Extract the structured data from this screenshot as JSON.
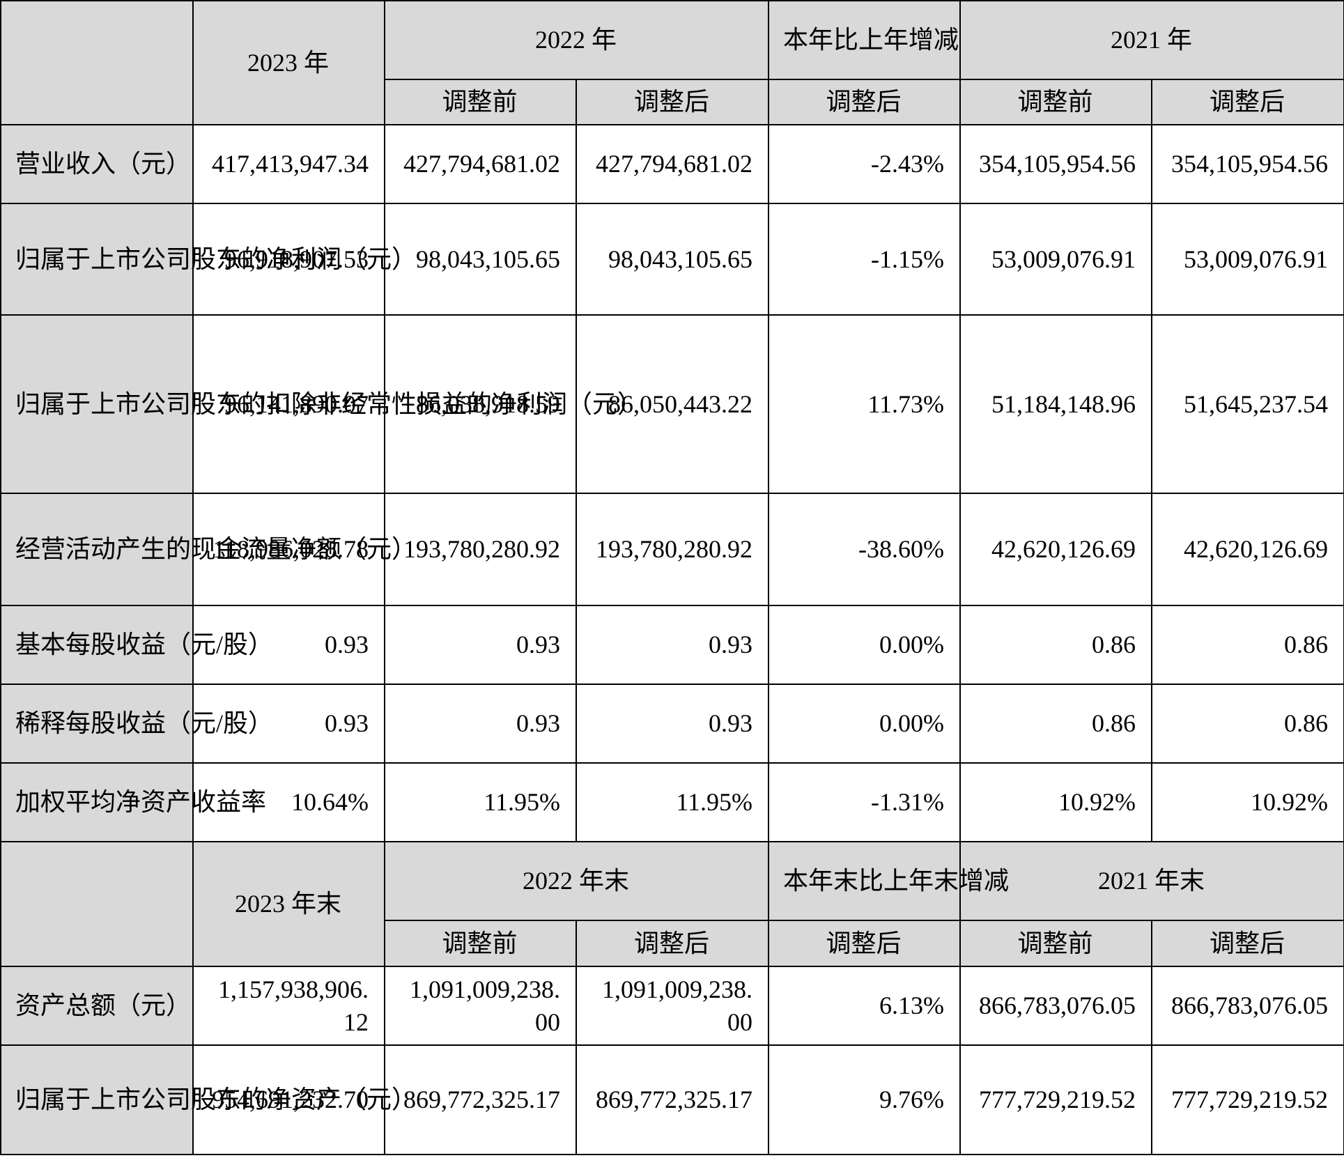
{
  "section1": {
    "col_2023": "2023 年",
    "col_2022": "2022 年",
    "col_change": "本年比上年增减",
    "col_2021": "2021 年",
    "sub_before_2022": "调整前",
    "sub_after_2022": "调整后",
    "sub_after_change": "调整后",
    "sub_before_2021": "调整前",
    "sub_after_2021": "调整后",
    "rows": [
      {
        "label": "营业收入（元）",
        "v2023": "417,413,947.34",
        "v2022_before": "427,794,681.02",
        "v2022_after": "427,794,681.02",
        "change": "-2.43%",
        "v2021_before": "354,105,954.56",
        "v2021_after": "354,105,954.56"
      },
      {
        "label": "归属于上市公司股东的净利润（元）",
        "v2023": "96,918,907.53",
        "v2022_before": "98,043,105.65",
        "v2022_after": "98,043,105.65",
        "change": "-1.15%",
        "v2021_before": "53,009,076.91",
        "v2021_after": "53,009,076.91"
      },
      {
        "label": "归属于上市公司股东的扣除非经常性损益的净利润（元）",
        "v2023": "96,141,890.07",
        "v2022_before": "86,038,918.59",
        "v2022_after": "86,050,443.22",
        "change": "11.73%",
        "v2021_before": "51,184,148.96",
        "v2021_after": "51,645,237.54"
      },
      {
        "label": "经营活动产生的现金流量净额（元）",
        "v2023": "118,986,028.78",
        "v2022_before": "193,780,280.92",
        "v2022_after": "193,780,280.92",
        "change": "-38.60%",
        "v2021_before": "42,620,126.69",
        "v2021_after": "42,620,126.69"
      },
      {
        "label": "基本每股收益（元/股）",
        "v2023": "0.93",
        "v2022_before": "0.93",
        "v2022_after": "0.93",
        "change": "0.00%",
        "v2021_before": "0.86",
        "v2021_after": "0.86"
      },
      {
        "label": "稀释每股收益（元/股）",
        "v2023": "0.93",
        "v2022_before": "0.93",
        "v2022_after": "0.93",
        "change": "0.00%",
        "v2021_before": "0.86",
        "v2021_after": "0.86"
      },
      {
        "label": "加权平均净资产收益率",
        "v2023": "10.64%",
        "v2022_before": "11.95%",
        "v2022_after": "11.95%",
        "change": "-1.31%",
        "v2021_before": "10.92%",
        "v2021_after": "10.92%"
      }
    ]
  },
  "section2": {
    "col_2023": "2023 年末",
    "col_2022": "2022 年末",
    "col_change": "本年末比上年末增减",
    "col_2021": "2021 年末",
    "sub_before_2022": "调整前",
    "sub_after_2022": "调整后",
    "sub_after_change": "调整后",
    "sub_before_2021": "调整前",
    "sub_after_2021": "调整后",
    "rows": [
      {
        "label": "资产总额（元）",
        "v2023": "1,157,938,906.12",
        "v2022_before": "1,091,009,238.00",
        "v2022_after": "1,091,009,238.00",
        "change": "6.13%",
        "v2021_before": "866,783,076.05",
        "v2021_after": "866,783,076.05"
      },
      {
        "label": "归属于上市公司股东的净资产（元）",
        "v2023": "954,691,232.70",
        "v2022_before": "869,772,325.17",
        "v2022_after": "869,772,325.17",
        "change": "9.76%",
        "v2021_before": "777,729,219.52",
        "v2021_after": "777,729,219.52"
      }
    ]
  }
}
